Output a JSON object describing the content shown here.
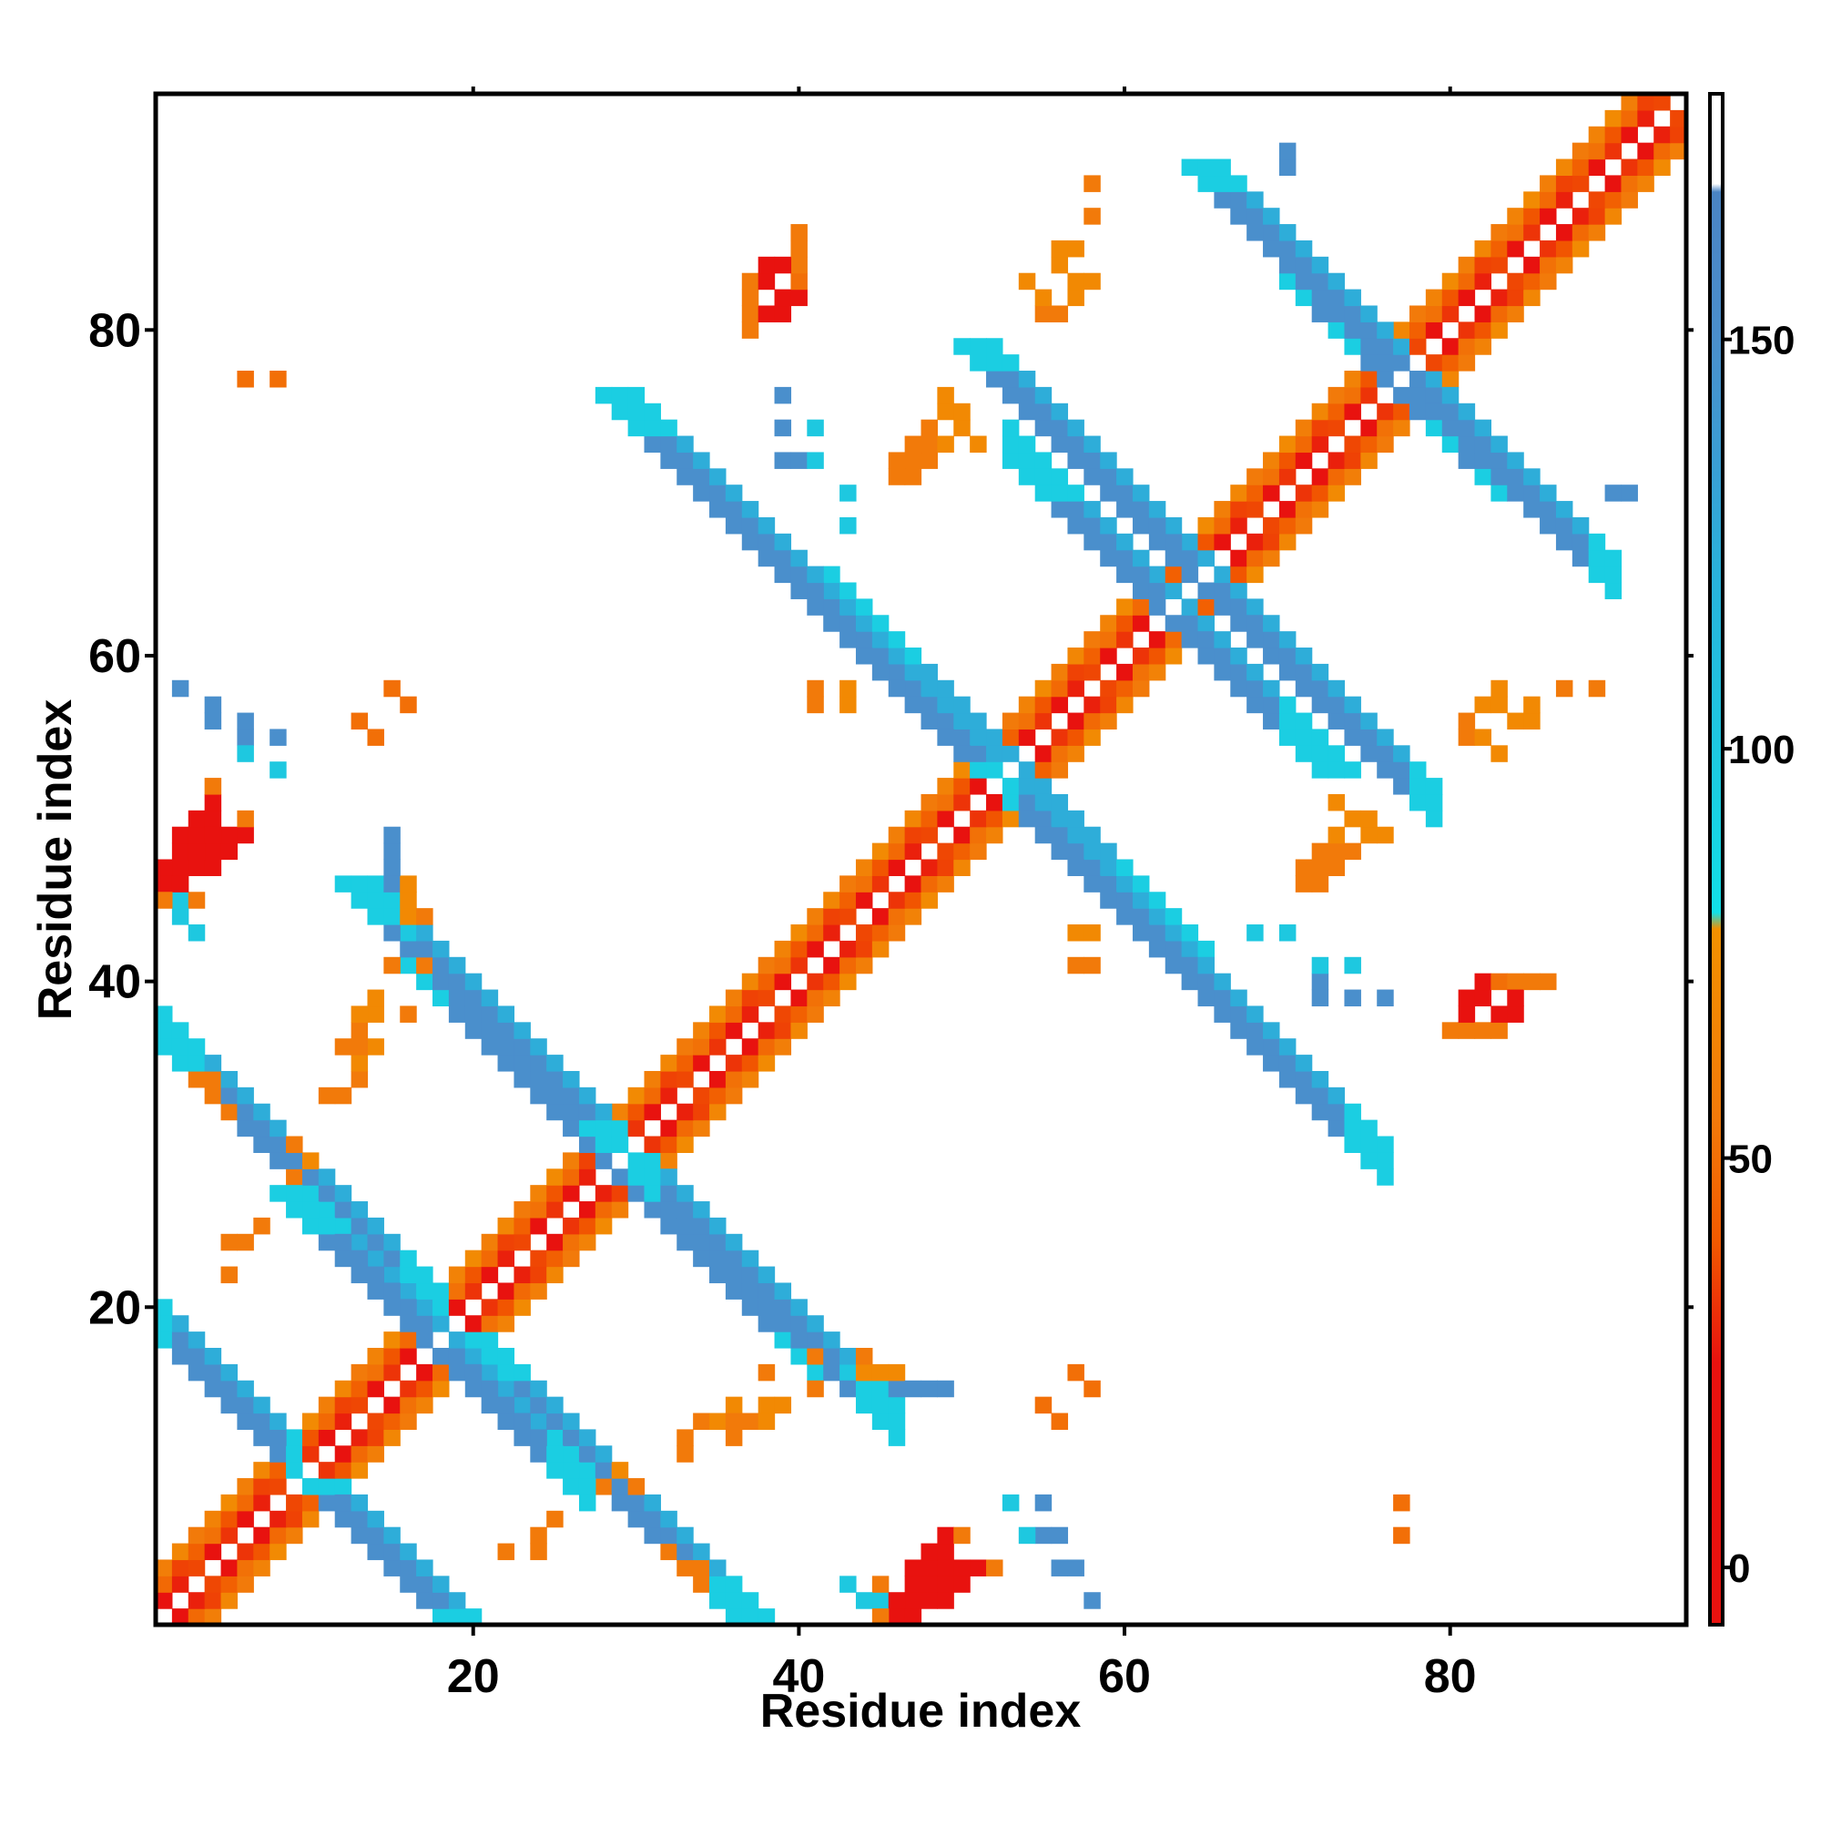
{
  "chart_data": {
    "type": "heatmap",
    "title": "",
    "xlabel": "Residue index",
    "ylabel": "Residue index",
    "xlim": [
      0.5,
      94.5
    ],
    "ylim": [
      0.5,
      94.5
    ],
    "x_ticks": [
      20,
      40,
      60,
      80
    ],
    "y_ticks": [
      20,
      40,
      60,
      80
    ],
    "colorbar": {
      "ticks": [
        0,
        50,
        100,
        150
      ],
      "range": [
        -7,
        180
      ],
      "stops": [
        {
          "value": -7,
          "color": "#e8120f"
        },
        {
          "value": 25,
          "color": "#e8120f"
        },
        {
          "value": 40,
          "color": "#f25a00"
        },
        {
          "value": 55,
          "color": "#f27a0a"
        },
        {
          "value": 78,
          "color": "#f29100"
        },
        {
          "value": 80,
          "color": "#12e0e8"
        },
        {
          "value": 100,
          "color": "#1ec8e0"
        },
        {
          "value": 120,
          "color": "#28b4dc"
        },
        {
          "value": 135,
          "color": "#3a9ed4"
        },
        {
          "value": 150,
          "color": "#4a8fcc"
        },
        {
          "value": 168,
          "color": "#4a84c4"
        },
        {
          "value": 169,
          "color": "#ffffff"
        },
        {
          "value": 180,
          "color": "#ffffff"
        }
      ]
    },
    "colors": {
      "red": "#e8120f",
      "red_orange": "#f25a00",
      "orange": "#f27a0a",
      "amber": "#f29100",
      "cyan": "#12e0e8",
      "light_blue": "#1ec8e0",
      "blue": "#4a8fcc",
      "steel_blue": "#3a9ed4"
    },
    "diagonal_band": {
      "cells": "|i-j| in 1..3",
      "values_by_offset": {
        "1": 20,
        "2": 35,
        "3": 55
      }
    },
    "blocks": [
      {
        "note": "antiparallel contact, residue i with j where i+j = constant",
        "sum": 20,
        "i_range": [
          1,
          9
        ],
        "width": 3,
        "value": 150
      },
      {
        "sum": 38,
        "i_range": [
          1,
          18
        ],
        "width": 3,
        "value": 150
      },
      {
        "sum": 36,
        "i_range": [
          10,
          27
        ],
        "width": 3,
        "value": 150
      },
      {
        "sum": 58,
        "i_range": [
          16,
          41
        ],
        "width": 3,
        "value": 150
      },
      {
        "sum": 59,
        "i_range": [
          29,
          46
        ],
        "width": 3,
        "value": 150
      },
      {
        "sum": 106,
        "i_range": [
          42,
          62
        ],
        "width": 3,
        "value": 150
      },
      {
        "sum": 105,
        "i_range": [
          51,
          76
        ],
        "width": 3,
        "value": 150
      },
      {
        "sum": 126,
        "i_range": [
          53,
          72
        ],
        "width": 3,
        "value": 150
      },
      {
        "sum": 130,
        "i_range": [
          63,
          79
        ],
        "width": 3,
        "value": 150
      },
      {
        "sum": 154,
        "i_range": [
          70,
          80
        ],
        "width": 3,
        "value": 150
      },
      {
        "sum": 155,
        "i_range": [
          76,
          90
        ],
        "width": 3,
        "value": 150
      }
    ],
    "points": [
      {
        "x": 3,
        "y": 47,
        "value": 10
      },
      {
        "x": 4,
        "y": 47,
        "value": 10
      },
      {
        "x": 4,
        "y": 48,
        "value": 10
      },
      {
        "x": 5,
        "y": 48,
        "value": 10
      },
      {
        "x": 5,
        "y": 49,
        "value": 10
      },
      {
        "x": 6,
        "y": 49,
        "value": 10
      },
      {
        "x": 6,
        "y": 50,
        "value": 55
      },
      {
        "x": 2,
        "y": 45,
        "value": 55
      },
      {
        "x": 3,
        "y": 45,
        "value": 55
      },
      {
        "x": 2,
        "y": 44,
        "value": 100
      },
      {
        "x": 3,
        "y": 43,
        "value": 100
      },
      {
        "x": 4,
        "y": 57,
        "value": 150
      },
      {
        "x": 6,
        "y": 55,
        "value": 150
      },
      {
        "x": 8,
        "y": 55,
        "value": 150
      },
      {
        "x": 8,
        "y": 53,
        "value": 100
      },
      {
        "x": 16,
        "y": 57,
        "value": 50
      },
      {
        "x": 14,
        "y": 55,
        "value": 50
      },
      {
        "x": 8,
        "y": 77,
        "value": 50
      },
      {
        "x": 15,
        "y": 48,
        "value": 150
      },
      {
        "x": 15,
        "y": 46,
        "value": 150
      },
      {
        "x": 16,
        "y": 43,
        "value": 100
      },
      {
        "x": 16,
        "y": 38,
        "value": 55
      },
      {
        "x": 17,
        "y": 41,
        "value": 70
      },
      {
        "x": 11,
        "y": 33,
        "value": 55
      },
      {
        "x": 12,
        "y": 33,
        "value": 55
      },
      {
        "x": 13,
        "y": 34,
        "value": 55
      },
      {
        "x": 13,
        "y": 35,
        "value": 70
      },
      {
        "x": 14,
        "y": 36,
        "value": 70
      },
      {
        "x": 5,
        "y": 24,
        "value": 55
      },
      {
        "x": 5,
        "y": 22,
        "value": 55
      },
      {
        "x": 6,
        "y": 24,
        "value": 55
      },
      {
        "x": 7,
        "y": 25,
        "value": 55
      },
      {
        "x": 9,
        "y": 28,
        "value": 55
      },
      {
        "x": 10,
        "y": 29,
        "value": 70
      },
      {
        "x": 37,
        "y": 80,
        "value": 55
      },
      {
        "x": 37,
        "y": 81,
        "value": 55
      },
      {
        "x": 38,
        "y": 81,
        "value": 15
      },
      {
        "x": 39,
        "y": 81,
        "value": 15
      },
      {
        "x": 39,
        "y": 82,
        "value": 15
      },
      {
        "x": 40,
        "y": 82,
        "value": 15
      },
      {
        "x": 40,
        "y": 83,
        "value": 50
      },
      {
        "x": 40,
        "y": 84,
        "value": 55
      },
      {
        "x": 39,
        "y": 74,
        "value": 150
      },
      {
        "x": 39,
        "y": 72,
        "value": 150
      },
      {
        "x": 40,
        "y": 72,
        "value": 150
      },
      {
        "x": 41,
        "y": 72,
        "value": 100
      },
      {
        "x": 43,
        "y": 68,
        "value": 100
      },
      {
        "x": 55,
        "y": 81,
        "value": 55
      },
      {
        "x": 56,
        "y": 81,
        "value": 55
      },
      {
        "x": 57,
        "y": 82,
        "value": 70
      },
      {
        "x": 57,
        "y": 83,
        "value": 70
      },
      {
        "x": 58,
        "y": 83,
        "value": 70
      },
      {
        "x": 58,
        "y": 87,
        "value": 55
      },
      {
        "x": 46,
        "y": 71,
        "value": 55
      },
      {
        "x": 47,
        "y": 71,
        "value": 55
      },
      {
        "x": 48,
        "y": 72,
        "value": 55
      },
      {
        "x": 48,
        "y": 73,
        "value": 55
      },
      {
        "x": 49,
        "y": 73,
        "value": 70
      },
      {
        "x": 50,
        "y": 74,
        "value": 70
      },
      {
        "x": 51,
        "y": 73,
        "value": 70
      },
      {
        "x": 41,
        "y": 57,
        "value": 55
      },
      {
        "x": 43,
        "y": 57,
        "value": 70
      },
      {
        "x": 83,
        "y": 54,
        "value": 70
      },
      {
        "x": 82,
        "y": 55,
        "value": 70
      },
      {
        "x": 84,
        "y": 56,
        "value": 70
      },
      {
        "x": 85,
        "y": 56,
        "value": 70
      },
      {
        "x": 85,
        "y": 57,
        "value": 70
      },
      {
        "x": 89,
        "y": 58,
        "value": 55
      },
      {
        "x": 72,
        "y": 47,
        "value": 55
      },
      {
        "x": 73,
        "y": 47,
        "value": 55
      },
      {
        "x": 72,
        "y": 46,
        "value": 55
      },
      {
        "x": 74,
        "y": 48,
        "value": 55
      },
      {
        "x": 75,
        "y": 49,
        "value": 70
      },
      {
        "x": 75,
        "y": 50,
        "value": 70
      },
      {
        "x": 76,
        "y": 49,
        "value": 70
      },
      {
        "x": 58,
        "y": 43,
        "value": 70
      },
      {
        "x": 58,
        "y": 41,
        "value": 55
      },
      {
        "x": 70,
        "y": 43,
        "value": 100
      },
      {
        "x": 74,
        "y": 41,
        "value": 100
      },
      {
        "x": 74,
        "y": 39,
        "value": 150
      },
      {
        "x": 76,
        "y": 39,
        "value": 150
      },
      {
        "x": 82,
        "y": 37,
        "value": 55
      },
      {
        "x": 83,
        "y": 37,
        "value": 55
      },
      {
        "x": 83,
        "y": 38,
        "value": 15
      },
      {
        "x": 84,
        "y": 38,
        "value": 15
      },
      {
        "x": 84,
        "y": 39,
        "value": 15
      },
      {
        "x": 84,
        "y": 40,
        "value": 55
      },
      {
        "x": 85,
        "y": 40,
        "value": 55
      },
      {
        "x": 86,
        "y": 40,
        "value": 55
      },
      {
        "x": 36,
        "y": 13,
        "value": 55
      },
      {
        "x": 37,
        "y": 13,
        "value": 55
      },
      {
        "x": 36,
        "y": 12,
        "value": 55
      },
      {
        "x": 38,
        "y": 14,
        "value": 70
      },
      {
        "x": 38,
        "y": 13,
        "value": 70
      },
      {
        "x": 39,
        "y": 14,
        "value": 70
      },
      {
        "x": 41,
        "y": 17,
        "value": 55
      },
      {
        "x": 41,
        "y": 15,
        "value": 55
      },
      {
        "x": 44,
        "y": 17,
        "value": 55
      },
      {
        "x": 45,
        "y": 16,
        "value": 70
      },
      {
        "x": 46,
        "y": 16,
        "value": 70
      },
      {
        "x": 44,
        "y": 16,
        "value": 70
      },
      {
        "x": 47,
        "y": 15,
        "value": 150
      },
      {
        "x": 49,
        "y": 15,
        "value": 150
      },
      {
        "x": 58,
        "y": 15,
        "value": 50
      },
      {
        "x": 56,
        "y": 13,
        "value": 50
      },
      {
        "x": 30,
        "y": 9,
        "value": 55
      },
      {
        "x": 32,
        "y": 5,
        "value": 55
      },
      {
        "x": 33,
        "y": 4,
        "value": 55
      },
      {
        "x": 34,
        "y": 4,
        "value": 55
      },
      {
        "x": 34,
        "y": 3,
        "value": 55
      },
      {
        "x": 46,
        "y": 1,
        "value": 15
      },
      {
        "x": 47,
        "y": 2,
        "value": 15
      },
      {
        "x": 48,
        "y": 2,
        "value": 15
      },
      {
        "x": 49,
        "y": 2,
        "value": 15
      },
      {
        "x": 48,
        "y": 3,
        "value": 15
      },
      {
        "x": 49,
        "y": 3,
        "value": 15
      },
      {
        "x": 50,
        "y": 3,
        "value": 15
      },
      {
        "x": 50,
        "y": 4,
        "value": 15
      },
      {
        "x": 51,
        "y": 4,
        "value": 15
      },
      {
        "x": 52,
        "y": 4,
        "value": 55
      },
      {
        "x": 49,
        "y": 4,
        "value": 15
      },
      {
        "x": 47,
        "y": 1,
        "value": 15
      },
      {
        "x": 46,
        "y": 2,
        "value": 15
      },
      {
        "x": 45,
        "y": 1,
        "value": 55
      },
      {
        "x": 44,
        "y": 2,
        "value": 100
      },
      {
        "x": 45,
        "y": 2,
        "value": 100
      },
      {
        "x": 54,
        "y": 6,
        "value": 100
      },
      {
        "x": 56,
        "y": 6,
        "value": 150
      },
      {
        "x": 56,
        "y": 4,
        "value": 150
      },
      {
        "x": 58,
        "y": 2,
        "value": 150
      },
      {
        "x": 77,
        "y": 6,
        "value": 50
      },
      {
        "x": 70,
        "y": 90,
        "value": 150
      },
      {
        "x": 91,
        "y": 70,
        "value": 150
      }
    ]
  }
}
